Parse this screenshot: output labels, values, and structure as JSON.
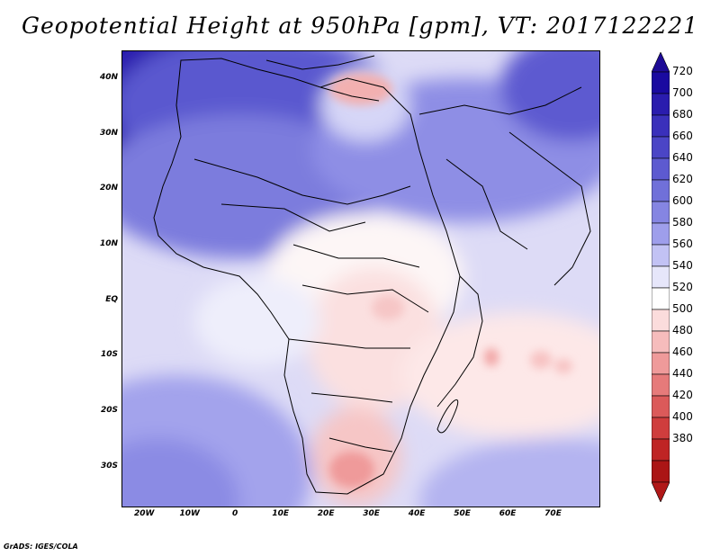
{
  "title": "Geopotential Height at 950hPa [gpm], VT: 2017122221",
  "footer": "GrADS: IGES/COLA",
  "map": {
    "projection": "latlon",
    "lon_range": [
      -25,
      80
    ],
    "lat_range": [
      -37,
      45
    ],
    "x_tick_labels": [
      {
        "lon": -20,
        "label": "20W"
      },
      {
        "lon": -10,
        "label": "10W"
      },
      {
        "lon": 0,
        "label": "0"
      },
      {
        "lon": 10,
        "label": "10E"
      },
      {
        "lon": 20,
        "label": "20E"
      },
      {
        "lon": 30,
        "label": "30E"
      },
      {
        "lon": 40,
        "label": "40E"
      },
      {
        "lon": 50,
        "label": "50E"
      },
      {
        "lon": 60,
        "label": "60E"
      },
      {
        "lon": 70,
        "label": "70E"
      }
    ],
    "y_tick_labels": [
      {
        "lat": 40,
        "label": "40N"
      },
      {
        "lat": 30,
        "label": "30N"
      },
      {
        "lat": 20,
        "label": "20N"
      },
      {
        "lat": 10,
        "label": "10N"
      },
      {
        "lat": 0,
        "label": "EQ"
      },
      {
        "lat": -10,
        "label": "10S"
      },
      {
        "lat": -20,
        "label": "20S"
      },
      {
        "lat": -30,
        "label": "30S"
      }
    ]
  },
  "colorbar": {
    "levels": [
      "720",
      "700",
      "680",
      "660",
      "640",
      "620",
      "600",
      "580",
      "560",
      "540",
      "520",
      "500",
      "480",
      "460",
      "440",
      "420",
      "400",
      "380"
    ],
    "colors": [
      "#1a0aa0",
      "#2a1cae",
      "#3a30bb",
      "#4b45c6",
      "#5d5ad0",
      "#7070d9",
      "#8585e2",
      "#9e9eeb",
      "#c2c2f4",
      "#e6e6fa",
      "#ffffff",
      "#fbdcdc",
      "#f6bcbc",
      "#ef9a9a",
      "#e67a7a",
      "#db5a5a",
      "#cf3d3d",
      "#bf2424",
      "#ab1515"
    ],
    "cap_top": "#1e0b96",
    "cap_bottom": "#b01818"
  }
}
